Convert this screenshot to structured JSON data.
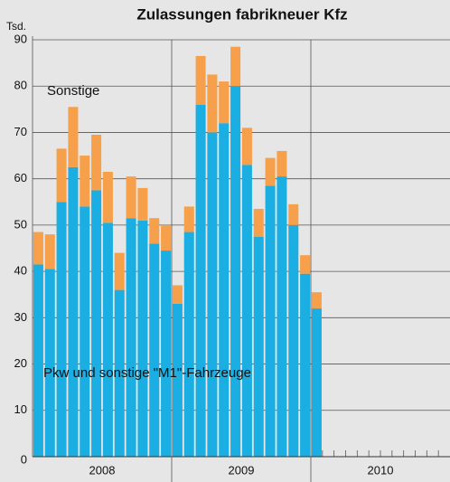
{
  "chart_data": {
    "type": "stacked_bar",
    "title": "Zulassungen fabrikneuer Kfz",
    "y_unit": "Tsd.",
    "categories": [
      null,
      null,
      null,
      null,
      null,
      null,
      null,
      null,
      null,
      null,
      null,
      null,
      null,
      null,
      null,
      null,
      null,
      null,
      null,
      null,
      null,
      null,
      null,
      null,
      null,
      null,
      null,
      null,
      null,
      null,
      null,
      null,
      null,
      null,
      null,
      null
    ],
    "year_labels": [
      "2008",
      "2009",
      "2010"
    ],
    "series": [
      {
        "name": "Pkw und sonstige \"M1\"-Fahrzeuge",
        "color": "#1aaee2",
        "values": [
          41.5,
          40.5,
          55,
          62.5,
          54,
          57.5,
          50.5,
          36,
          51.5,
          51,
          46,
          44.5,
          33,
          48.5,
          76,
          70,
          72,
          80,
          63,
          47.5,
          58.5,
          60.5,
          50,
          39.5,
          32,
          null,
          null,
          null,
          null,
          null,
          null,
          null,
          null,
          null,
          null,
          null
        ]
      },
      {
        "name": "Sonstige",
        "color": "#f7a04b",
        "values": [
          7,
          7.5,
          11.5,
          13,
          11,
          12,
          11,
          8,
          9,
          7,
          5.5,
          5.5,
          4,
          5.5,
          10.5,
          12.5,
          9,
          8.5,
          8,
          6,
          6,
          5.5,
          4.5,
          4,
          3.5,
          null,
          null,
          null,
          null,
          null,
          null,
          null,
          null,
          null,
          null,
          null
        ]
      }
    ],
    "ylim": [
      0,
      90
    ],
    "yticks": [
      0,
      10,
      20,
      30,
      40,
      50,
      60,
      70,
      80,
      90
    ],
    "grid": true
  }
}
